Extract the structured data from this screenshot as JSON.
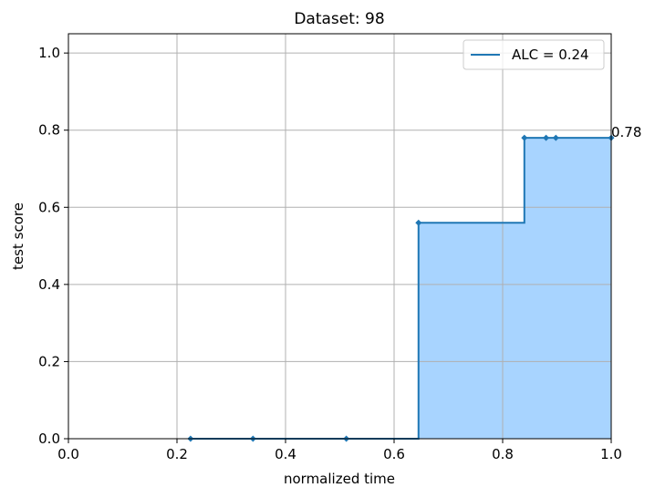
{
  "chart_data": {
    "type": "area",
    "title": "Dataset: 98",
    "xlabel": "normalized time",
    "ylabel": "test score",
    "xlim": [
      0.0,
      1.0
    ],
    "ylim": [
      0.0,
      1.05
    ],
    "xticks": [
      0.0,
      0.2,
      0.4,
      0.6,
      0.8,
      1.0
    ],
    "xtick_labels": [
      "0.0",
      "0.2",
      "0.4",
      "0.6",
      "0.8",
      "1.0"
    ],
    "yticks": [
      0.0,
      0.2,
      0.4,
      0.6,
      0.8,
      1.0
    ],
    "ytick_labels": [
      "0.0",
      "0.2",
      "0.4",
      "0.6",
      "0.8",
      "1.0"
    ],
    "grid": true,
    "legend_position": "upper right",
    "series": [
      {
        "name": "ALC = 0.24",
        "style": "step-post",
        "color": "#1f77b4",
        "fill_color": "#a8d4ff",
        "x": [
          0.225,
          0.34,
          0.512,
          0.645,
          0.84,
          0.88,
          0.898,
          1.0
        ],
        "y": [
          0.0,
          0.0,
          0.0,
          0.56,
          0.78,
          0.78,
          0.78,
          0.78
        ]
      }
    ],
    "annotations": [
      {
        "text": "0.78",
        "x": 1.0,
        "y": 0.78
      }
    ]
  }
}
